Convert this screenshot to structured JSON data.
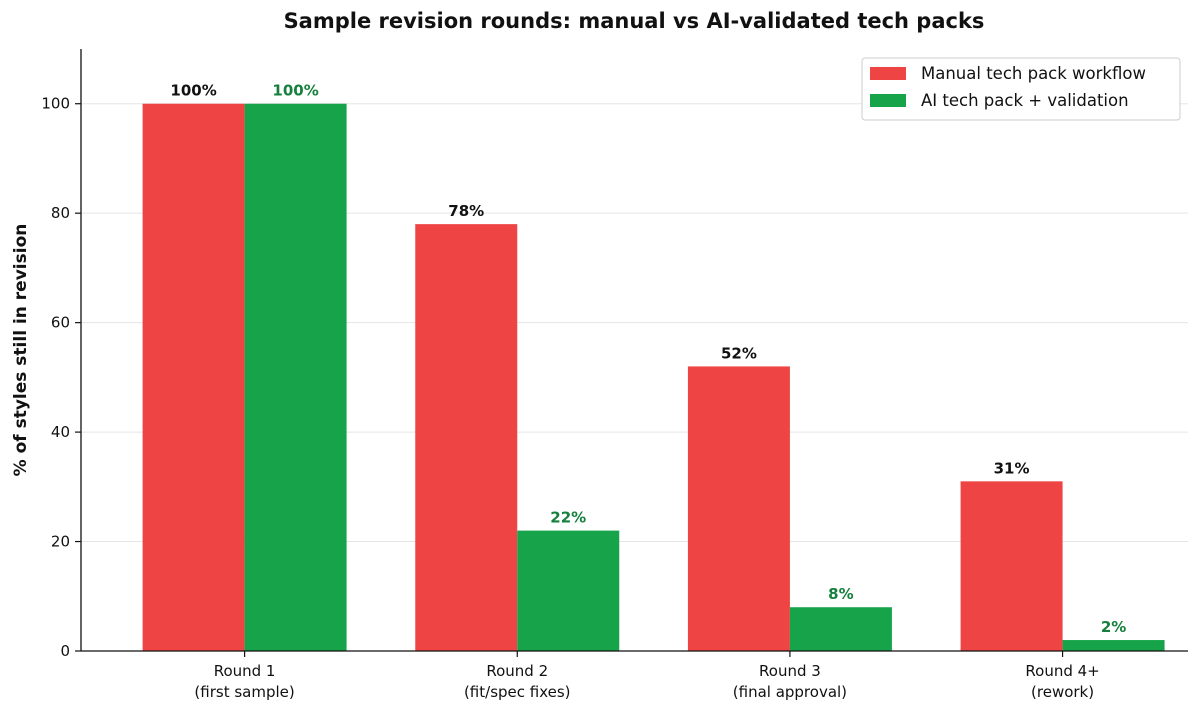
{
  "chart_data": {
    "type": "bar",
    "title": "Sample revision rounds: manual vs AI-validated tech packs",
    "xlabel": "",
    "ylabel": "% of styles still in revision",
    "ylim": [
      0,
      110
    ],
    "yticks": [
      0,
      20,
      40,
      60,
      80,
      100
    ],
    "grid": "y",
    "legend_position": "top-right",
    "categories": [
      [
        "Round 1",
        "(first sample)"
      ],
      [
        "Round 2",
        "(fit/spec fixes)"
      ],
      [
        "Round 3",
        "(final approval)"
      ],
      [
        "Round 4+",
        "(rework)"
      ]
    ],
    "series": [
      {
        "name": "Manual tech pack workflow",
        "color": "#ef4444",
        "label_color": "#111111",
        "values": [
          100,
          78,
          52,
          31
        ],
        "labels": [
          "100%",
          "78%",
          "52%",
          "31%"
        ]
      },
      {
        "name": "AI tech pack + validation",
        "color": "#16a34a",
        "label_color": "#15803d",
        "values": [
          100,
          22,
          8,
          2
        ],
        "labels": [
          "100%",
          "22%",
          "8%",
          "2%"
        ]
      }
    ]
  }
}
